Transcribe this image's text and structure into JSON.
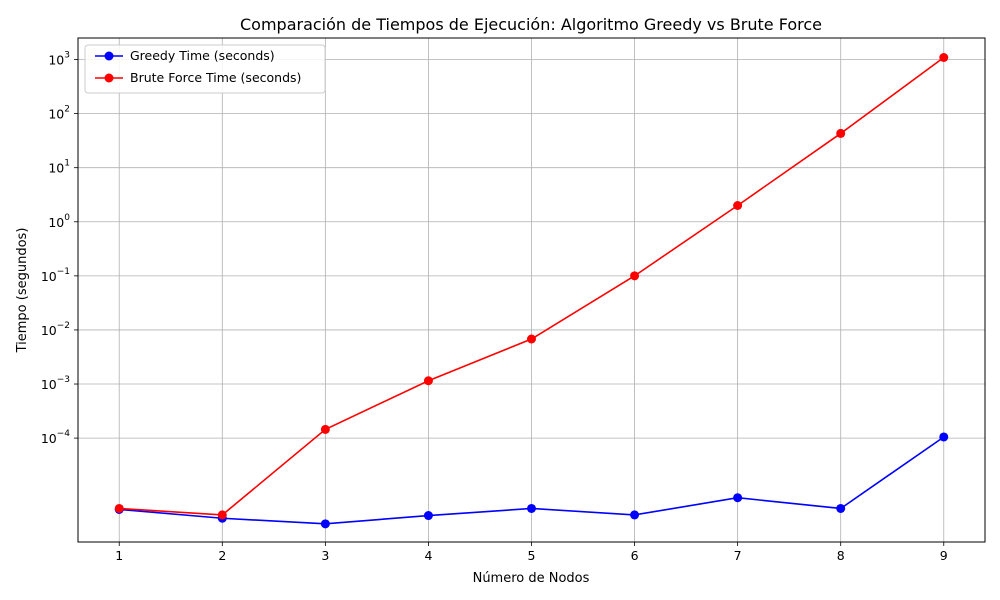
{
  "chart_data": {
    "type": "line",
    "title": "Comparación de Tiempos de Ejecución: Algoritmo Greedy vs Brute Force",
    "xlabel": "Número de Nodos",
    "ylabel": "Tiempo (segundos)",
    "x": [
      1,
      2,
      3,
      4,
      5,
      6,
      7,
      8,
      9
    ],
    "xlim": [
      0.6,
      9.4
    ],
    "yscale": "log",
    "ylim": [
      1.2e-06,
      2500
    ],
    "grid": true,
    "legend_position": "top-left",
    "series": [
      {
        "name": "Greedy Time (seconds)",
        "color": "#0000ff",
        "marker": "circle",
        "values": [
          4.8e-06,
          3.3e-06,
          2.6e-06,
          3.7e-06,
          5e-06,
          3.8e-06,
          7.9e-06,
          5e-06,
          0.000105
        ]
      },
      {
        "name": "Brute Force Time (seconds)",
        "color": "#ff0000",
        "marker": "circle",
        "values": [
          5e-06,
          3.8e-06,
          0.000145,
          0.00115,
          0.0068,
          0.1,
          2.0,
          43,
          1090
        ]
      }
    ],
    "x_ticks": [
      "1",
      "2",
      "3",
      "4",
      "5",
      "6",
      "7",
      "8",
      "9"
    ],
    "y_ticks": [
      {
        "value": 0.0001,
        "base": "10",
        "exp": "−4"
      },
      {
        "value": 0.001,
        "base": "10",
        "exp": "−3"
      },
      {
        "value": 0.01,
        "base": "10",
        "exp": "−2"
      },
      {
        "value": 0.1,
        "base": "10",
        "exp": "−1"
      },
      {
        "value": 1,
        "base": "10",
        "exp": "0"
      },
      {
        "value": 10,
        "base": "10",
        "exp": "1"
      },
      {
        "value": 100,
        "base": "10",
        "exp": "2"
      },
      {
        "value": 1000,
        "base": "10",
        "exp": "3"
      }
    ]
  }
}
